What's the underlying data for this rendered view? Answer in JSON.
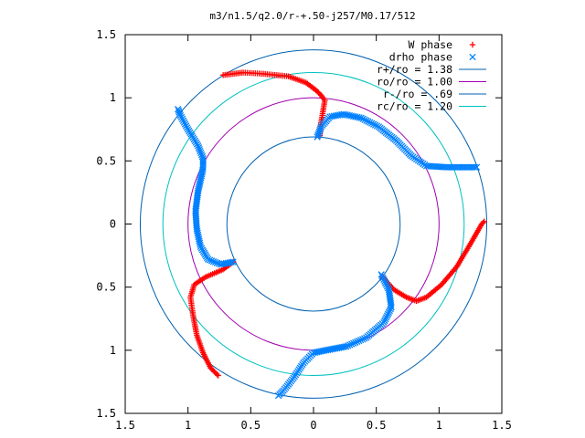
{
  "chart_data": {
    "type": "scatter",
    "title": "m3/n1.5/q2.0/r-+.50-j257/M0.17/512",
    "xlabel": "",
    "ylabel": "",
    "xlim": [
      -1.5,
      1.5
    ],
    "ylim": [
      -1.5,
      1.5
    ],
    "xtick_labels": [
      "1.5",
      "1",
      "0.5",
      "0",
      "0.5",
      "1",
      "1.5"
    ],
    "ytick_labels": [
      "1.5",
      "1",
      "0.5",
      "0",
      "0.5",
      "1",
      "1.5"
    ],
    "grid": false,
    "legend_position": "top-right",
    "series": [
      {
        "name": "W phase",
        "marker": "plus",
        "color": "#ff0000",
        "arms": [
          [
            [
              0.05,
              0.7
            ],
            [
              0.06,
              0.8
            ],
            [
              0.08,
              0.92
            ],
            [
              0.09,
              0.98
            ],
            [
              0.06,
              1.02
            ],
            [
              0.02,
              1.06
            ],
            [
              -0.06,
              1.12
            ],
            [
              -0.2,
              1.17
            ],
            [
              -0.4,
              1.19
            ],
            [
              -0.56,
              1.2
            ],
            [
              -0.72,
              1.18
            ]
          ],
          [
            [
              0.55,
              -0.42
            ],
            [
              0.64,
              -0.52
            ],
            [
              0.74,
              -0.58
            ],
            [
              0.82,
              -0.61
            ],
            [
              0.9,
              -0.58
            ],
            [
              1.02,
              -0.48
            ],
            [
              1.14,
              -0.34
            ],
            [
              1.26,
              -0.14
            ],
            [
              1.34,
              0.0
            ],
            [
              1.36,
              0.02
            ]
          ],
          [
            [
              -0.64,
              -0.3
            ],
            [
              -0.72,
              -0.36
            ],
            [
              -0.86,
              -0.42
            ],
            [
              -0.95,
              -0.48
            ],
            [
              -0.98,
              -0.58
            ],
            [
              -0.96,
              -0.72
            ],
            [
              -0.93,
              -0.88
            ],
            [
              -0.88,
              -1.02
            ],
            [
              -0.82,
              -1.14
            ],
            [
              -0.76,
              -1.2
            ]
          ]
        ]
      },
      {
        "name": "drho phase",
        "marker": "cross",
        "color": "#0080ff",
        "arms": [
          [
            [
              0.03,
              0.69
            ],
            [
              0.06,
              0.77
            ],
            [
              0.13,
              0.85
            ],
            [
              0.24,
              0.87
            ],
            [
              0.38,
              0.84
            ],
            [
              0.52,
              0.77
            ],
            [
              0.66,
              0.66
            ],
            [
              0.78,
              0.54
            ],
            [
              0.9,
              0.46
            ],
            [
              1.06,
              0.45
            ],
            [
              1.22,
              0.45
            ],
            [
              1.3,
              0.45
            ]
          ],
          [
            [
              0.54,
              -0.4
            ],
            [
              0.6,
              -0.52
            ],
            [
              0.62,
              -0.66
            ],
            [
              0.56,
              -0.78
            ],
            [
              0.42,
              -0.9
            ],
            [
              0.26,
              -0.97
            ],
            [
              0.1,
              -1.0
            ],
            [
              0.0,
              -1.02
            ],
            [
              -0.08,
              -1.1
            ],
            [
              -0.16,
              -1.22
            ],
            [
              -0.24,
              -1.32
            ],
            [
              -0.28,
              -1.36
            ]
          ],
          [
            [
              -0.64,
              -0.3
            ],
            [
              -0.74,
              -0.32
            ],
            [
              -0.84,
              -0.28
            ],
            [
              -0.9,
              -0.18
            ],
            [
              -0.93,
              -0.04
            ],
            [
              -0.94,
              0.1
            ],
            [
              -0.92,
              0.26
            ],
            [
              -0.88,
              0.44
            ],
            [
              -0.88,
              0.52
            ],
            [
              -0.92,
              0.62
            ],
            [
              -1.0,
              0.75
            ],
            [
              -1.06,
              0.86
            ],
            [
              -1.08,
              0.91
            ]
          ]
        ]
      },
      {
        "name": "r+/ro = 1.38",
        "type": "circle",
        "radius": 1.38,
        "color": "#0060b0"
      },
      {
        "name": "ro/ro = 1.00",
        "type": "circle",
        "radius": 1.0,
        "color": "#a000b0"
      },
      {
        "name": "r-/ro = .69",
        "type": "circle",
        "radius": 0.69,
        "color": "#0060b0"
      },
      {
        "name": "rc/ro = 1.20",
        "type": "circle",
        "radius": 1.2,
        "color": "#00c0c0"
      }
    ]
  }
}
